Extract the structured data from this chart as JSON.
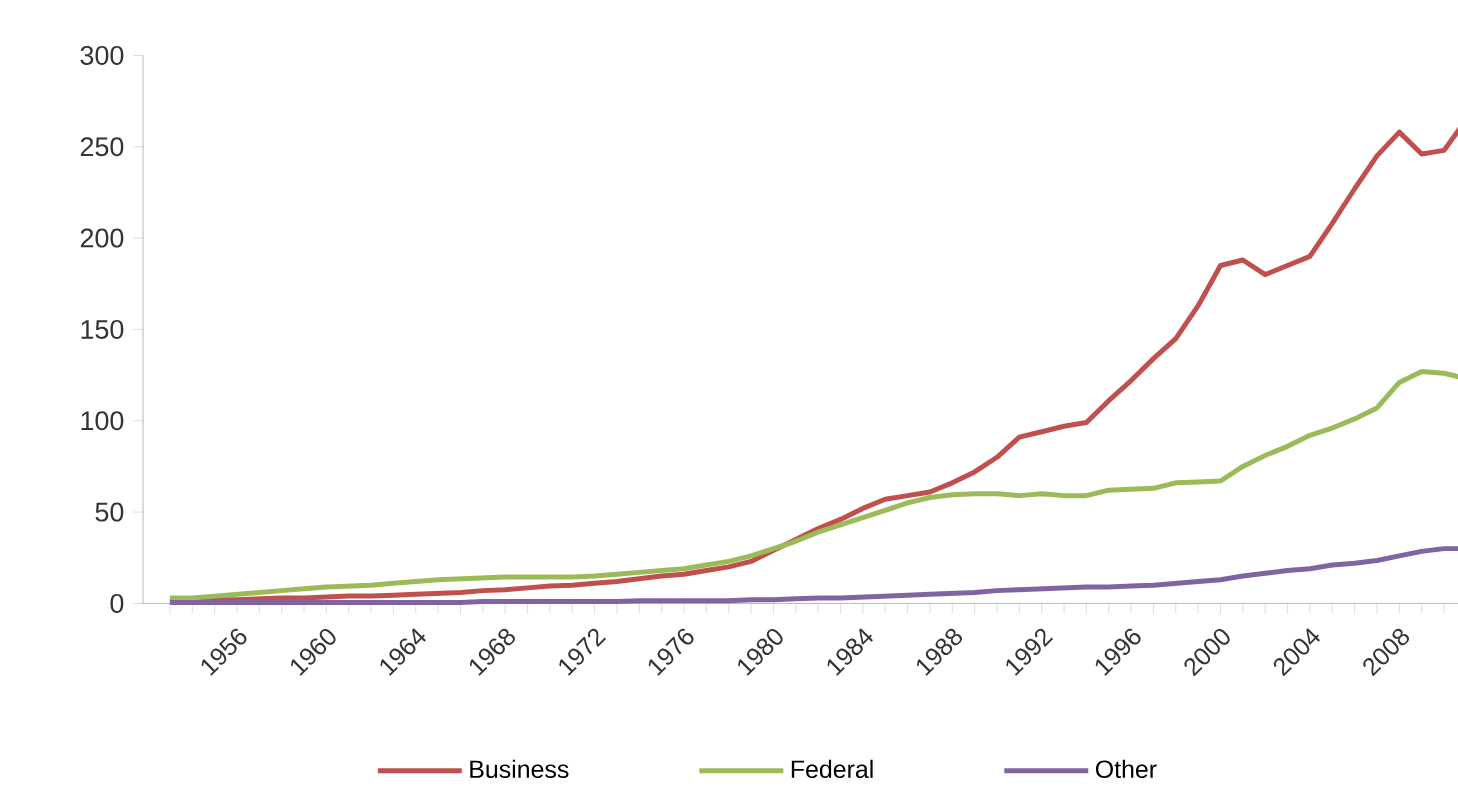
{
  "chart_data": {
    "type": "line",
    "categories": [
      null,
      null,
      null,
      "1956",
      null,
      null,
      null,
      "1960",
      null,
      null,
      null,
      "1964",
      null,
      null,
      null,
      "1968",
      null,
      null,
      null,
      "1972",
      null,
      null,
      null,
      "1976",
      null,
      null,
      null,
      "1980",
      null,
      null,
      null,
      "1984",
      null,
      null,
      null,
      "1988",
      null,
      null,
      null,
      "1992",
      null,
      null,
      null,
      "1996",
      null,
      null,
      null,
      "2000",
      null,
      null,
      null,
      "2004",
      null,
      null,
      null,
      "2008",
      null,
      null,
      null
    ],
    "series": [
      {
        "name": "Business",
        "color": "#c0504d",
        "values": [
          1,
          1.5,
          2,
          2,
          2.5,
          3,
          3,
          3.5,
          4,
          4,
          4.5,
          5,
          5.5,
          6,
          7,
          7.5,
          8.5,
          9.5,
          10,
          11,
          12,
          13.5,
          15,
          16,
          18,
          20,
          23,
          29,
          35,
          41,
          46,
          52,
          57,
          59,
          61,
          66,
          72,
          80,
          91,
          94,
          97,
          99,
          111,
          122,
          134,
          145,
          163,
          185,
          188,
          180,
          185,
          190,
          208,
          227,
          245,
          258,
          246,
          248,
          265
        ]
      },
      {
        "name": "Federal",
        "color": "#9bbb59",
        "values": [
          3,
          3,
          4,
          5,
          6,
          7,
          8,
          9,
          9.5,
          10,
          11,
          12,
          13,
          13.5,
          14,
          14.5,
          14.5,
          14.5,
          14.5,
          15,
          16,
          17,
          18,
          19,
          21,
          23,
          26,
          30,
          34,
          39,
          43,
          47,
          51,
          55,
          58,
          59.5,
          60,
          60,
          59,
          60,
          59,
          59,
          62,
          62.5,
          63,
          66,
          66.5,
          67,
          75,
          81,
          86,
          92,
          96,
          101,
          107,
          121,
          127,
          126,
          123
        ]
      },
      {
        "name": "Other",
        "color": "#8064a2",
        "values": [
          0.5,
          0.5,
          0.5,
          0.5,
          0.5,
          0.5,
          0.5,
          0.5,
          0.5,
          0.5,
          0.5,
          0.5,
          0.5,
          0.5,
          1,
          1,
          1,
          1,
          1,
          1,
          1,
          1.5,
          1.5,
          1.5,
          1.5,
          1.5,
          2,
          2,
          2.5,
          3,
          3,
          3.5,
          4,
          4.5,
          5,
          5.5,
          6,
          7,
          7.5,
          8,
          8.5,
          9,
          9,
          9.5,
          10,
          11,
          12,
          13,
          15,
          16.5,
          18,
          19,
          21,
          22,
          23.5,
          26,
          28.5,
          30,
          30
        ]
      }
    ],
    "ylim": [
      0,
      300
    ],
    "yticks": [
      0,
      50,
      100,
      150,
      200,
      250,
      300
    ],
    "grid": false,
    "legend": "bottom",
    "marker": "none",
    "line_style": "solid"
  }
}
